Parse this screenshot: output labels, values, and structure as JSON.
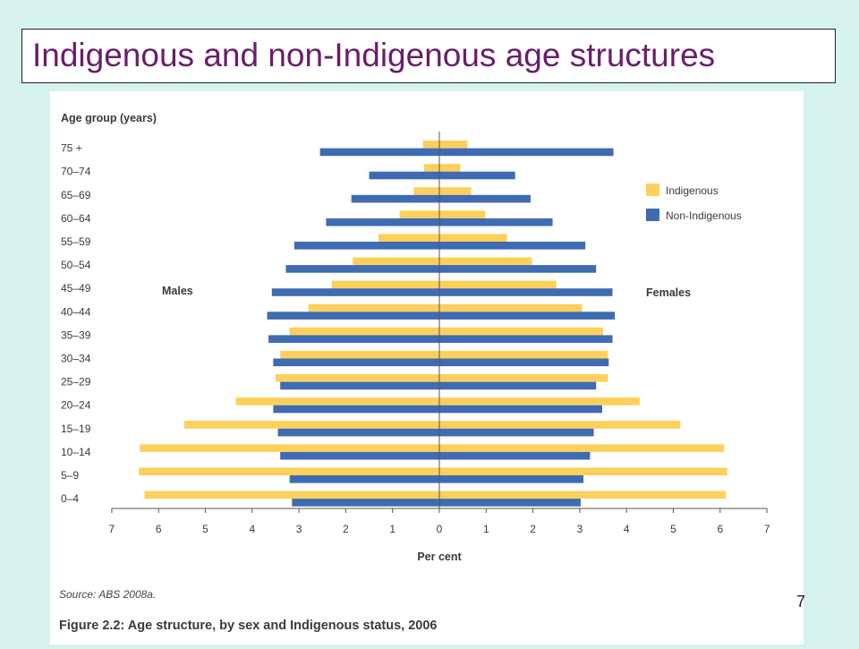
{
  "slide": {
    "title": "Indigenous and non-Indigenous age structures",
    "page_number": "7"
  },
  "figure": {
    "source": "Source: ABS 2008a.",
    "caption": "Figure 2.2: Age structure, by sex and Indigenous status, 2006"
  },
  "chart_data": {
    "type": "bar",
    "orientation": "horizontal-population-pyramid",
    "yaxis_title": "Age group (years)",
    "xlabel": "Per cent",
    "xlim": [
      -7,
      7
    ],
    "xticks": [
      -7,
      -6,
      -5,
      -4,
      -3,
      -2,
      -1,
      0,
      1,
      2,
      3,
      4,
      5,
      6,
      7
    ],
    "xtick_labels": [
      "7",
      "6",
      "5",
      "4",
      "3",
      "2",
      "1",
      "0",
      "1",
      "2",
      "3",
      "4",
      "5",
      "6",
      "7"
    ],
    "side_labels": {
      "left": "Males",
      "right": "Females"
    },
    "legend_position": "right",
    "categories": [
      "75 +",
      "70–74",
      "65–69",
      "60–64",
      "55–59",
      "50–54",
      "45–49",
      "40–44",
      "35–39",
      "30–34",
      "25–29",
      "20–24",
      "15–19",
      "10–14",
      "5–9",
      "0–4"
    ],
    "series": [
      {
        "name": "Indigenous",
        "color": "#fdd05c",
        "males": [
          0.35,
          0.33,
          0.55,
          0.85,
          1.3,
          1.85,
          2.3,
          2.8,
          3.2,
          3.4,
          3.5,
          4.35,
          5.45,
          6.4,
          6.42,
          6.3
        ],
        "females": [
          0.6,
          0.45,
          0.68,
          0.98,
          1.45,
          1.98,
          2.5,
          3.05,
          3.5,
          3.6,
          3.6,
          4.28,
          5.15,
          6.08,
          6.15,
          6.12
        ]
      },
      {
        "name": "Non-Indigenous",
        "color": "#3f6bb2",
        "males": [
          2.55,
          1.5,
          1.88,
          2.42,
          3.1,
          3.28,
          3.58,
          3.68,
          3.65,
          3.55,
          3.4,
          3.55,
          3.45,
          3.4,
          3.2,
          3.15
        ],
        "females": [
          3.72,
          1.62,
          1.95,
          2.42,
          3.12,
          3.35,
          3.7,
          3.75,
          3.7,
          3.62,
          3.35,
          3.48,
          3.3,
          3.22,
          3.08,
          3.02
        ]
      }
    ]
  }
}
